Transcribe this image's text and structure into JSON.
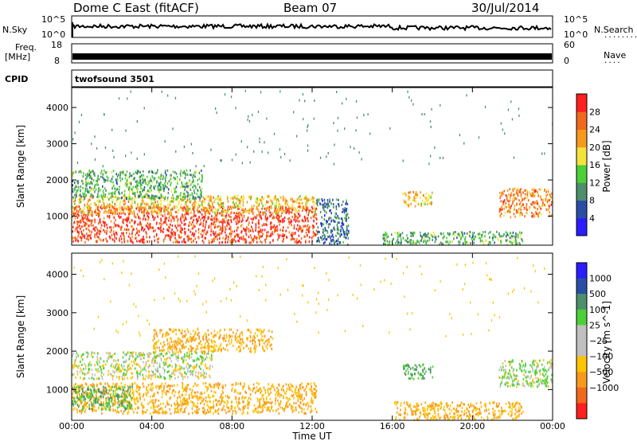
{
  "header": {
    "station": "Dome C East (fitACF)",
    "beam": "Beam 07",
    "date": "30/Jul/2014"
  },
  "panels": {
    "sky": {
      "left_label": "N.Sky",
      "right_label": "N.Search",
      "right_dots": ".........",
      "left_ticks": [
        "10^5",
        "10^0"
      ],
      "right_ticks": [
        "10^5",
        "10^0"
      ]
    },
    "freq": {
      "label_line1": "Freq.",
      "label_line2": "[MHz]",
      "right_label": "Nave",
      "right_dots": "....",
      "left_ticks": [
        "18",
        "8"
      ],
      "right_ticks": [
        "60",
        "0"
      ]
    },
    "cpid": {
      "label": "CPID",
      "value": "twofsound 3501"
    }
  },
  "colors": {
    "power": [
      "#2a1dff",
      "#2a4ea6",
      "#4d8f6a",
      "#4cd037",
      "#f2e43b",
      "#f79a1b",
      "#f2681c",
      "#ff1f1f"
    ],
    "velocity": [
      "#ff1f1f",
      "#f2681c",
      "#f79a1b",
      "#ffc300",
      "#c0c0c0",
      "#c0c0c0",
      "#4cd037",
      "#4d8f6a",
      "#2a4ea6",
      "#2a1dff"
    ]
  },
  "chart_data": [
    {
      "type": "heatmap",
      "name": "power",
      "ylabel": "Slant Range [km]",
      "ylim": [
        200,
        4550
      ],
      "yticks": [
        "1000",
        "2000",
        "3000",
        "4000"
      ],
      "colorbar": {
        "label": "Power [dB]",
        "range": [
          0,
          32
        ],
        "ticks": [
          "4",
          "8",
          "12",
          "16",
          "20",
          "24",
          "28"
        ]
      },
      "regions": [
        {
          "t0": 0.0,
          "t1": 12.2,
          "r0": 300,
          "r1": 1300,
          "level": 28
        },
        {
          "t0": 0.0,
          "t1": 12.2,
          "r0": 1100,
          "r1": 1600,
          "level": 20
        },
        {
          "t0": 0.0,
          "t1": 6.5,
          "r0": 1500,
          "r1": 2300,
          "level": 12
        },
        {
          "t0": 12.2,
          "t1": 13.8,
          "r0": 200,
          "r1": 1500,
          "level": 8
        },
        {
          "t0": 16.5,
          "t1": 18.0,
          "r0": 1300,
          "r1": 1700,
          "level": 20
        },
        {
          "t0": 15.5,
          "t1": 22.5,
          "r0": 200,
          "r1": 600,
          "level": 12
        },
        {
          "t0": 21.3,
          "t1": 24.0,
          "r0": 1000,
          "r1": 1800,
          "level": 24
        }
      ]
    },
    {
      "type": "heatmap",
      "name": "velocity",
      "xlabel": "Time UT",
      "ylabel": "Slant Range [km]",
      "xlim": [
        0,
        24
      ],
      "ylim": [
        200,
        4550
      ],
      "xticks": [
        "00:00",
        "04:00",
        "08:00",
        "12:00",
        "16:00",
        "20:00",
        "00:00"
      ],
      "yticks": [
        "1000",
        "2000",
        "3000",
        "4000"
      ],
      "colorbar": {
        "label": "Velocity [m s^-1]",
        "ticks": [
          "1000",
          "500",
          "100",
          "25",
          "−25",
          "−100",
          "−500",
          "−1000"
        ]
      },
      "regions": [
        {
          "t0": 0.0,
          "t1": 12.2,
          "r0": 400,
          "r1": 1200,
          "level": -100
        },
        {
          "t0": 0.0,
          "t1": 7.0,
          "r0": 1300,
          "r1": 2000,
          "level": 0
        },
        {
          "t0": 0.0,
          "t1": 3.0,
          "r0": 500,
          "r1": 1100,
          "level": 100
        },
        {
          "t0": 4.0,
          "t1": 10.0,
          "r0": 2000,
          "r1": 2600,
          "level": -100
        },
        {
          "t0": 16.5,
          "t1": 18.0,
          "r0": 1300,
          "r1": 1700,
          "level": 100
        },
        {
          "t0": 16.0,
          "t1": 22.5,
          "r0": 200,
          "r1": 700,
          "level": -100
        },
        {
          "t0": 21.3,
          "t1": 24.0,
          "r0": 1100,
          "r1": 1800,
          "level": 25
        }
      ]
    }
  ]
}
